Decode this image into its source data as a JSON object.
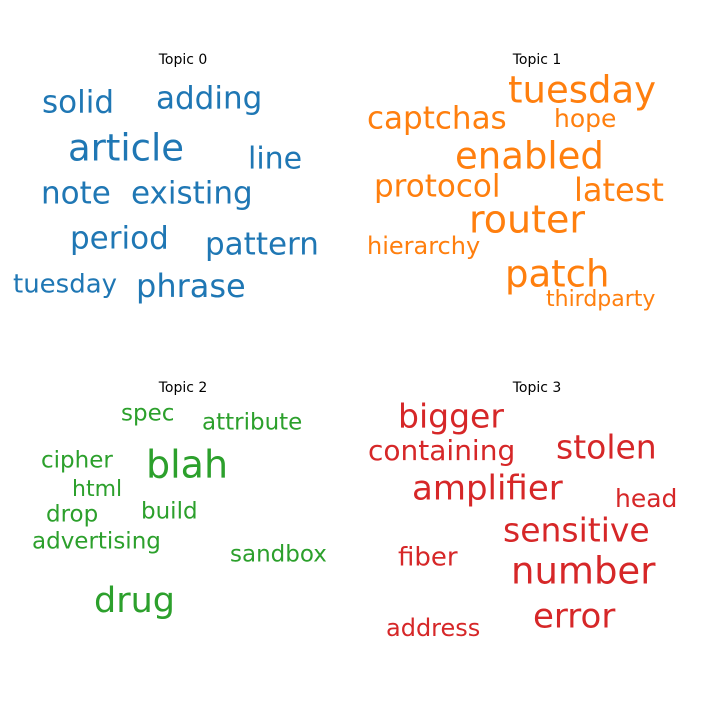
{
  "chart_data": [
    {
      "type": "wordcloud",
      "title": "Topic 0",
      "color": "#1f77b4",
      "words": [
        "article",
        "solid",
        "adding",
        "line",
        "note",
        "existing",
        "period",
        "pattern",
        "phrase",
        "tuesday"
      ]
    },
    {
      "type": "wordcloud",
      "title": "Topic 1",
      "color": "#ff7f0e",
      "words": [
        "router",
        "patch",
        "tuesday",
        "enabled",
        "captchas",
        "protocol",
        "latest",
        "hope",
        "hierarchy",
        "thirdparty"
      ]
    },
    {
      "type": "wordcloud",
      "title": "Topic 2",
      "color": "#2ca02c",
      "words": [
        "blah",
        "drug",
        "attribute",
        "spec",
        "cipher",
        "html",
        "build",
        "drop",
        "advertising",
        "sandbox"
      ]
    },
    {
      "type": "wordcloud",
      "title": "Topic 3",
      "color": "#d62728",
      "words": [
        "number",
        "amplifier",
        "sensitive",
        "stolen",
        "error",
        "bigger",
        "containing",
        "head",
        "fiber",
        "address"
      ]
    }
  ]
}
